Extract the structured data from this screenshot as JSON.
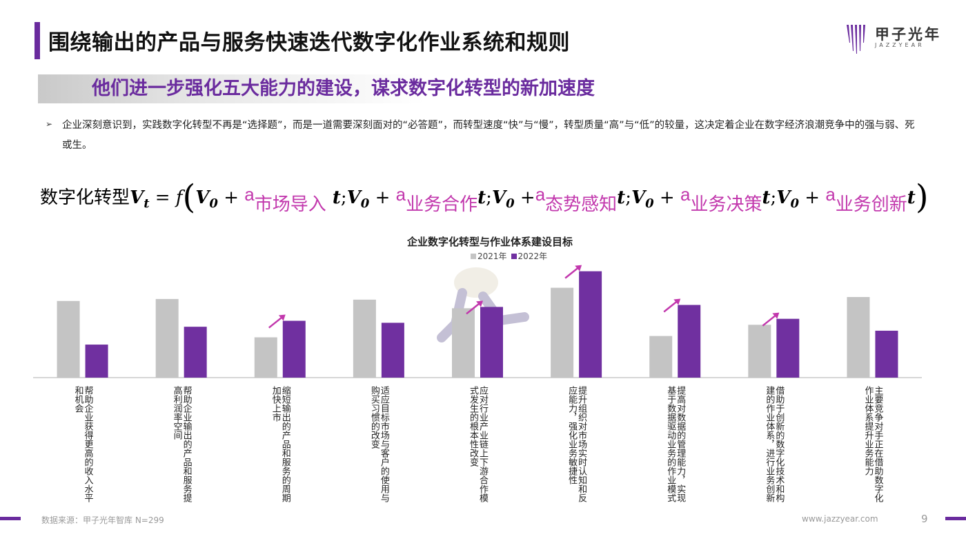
{
  "header": {
    "title": "围绕输出的产品与服务快速迭代数字化作业系统和规则",
    "logo_name": "甲子光年",
    "logo_sub": "JAZZYEAR"
  },
  "subtitle": "他们进一步强化五大能力的建设，谋求数字化转型的新加速度",
  "bullet": {
    "marker": "➢",
    "text": "企业深刻意识到，实践数字化转型不再是“选择题”，而是一道需要深刻面对的“必答题”，而转型速度“快”与“慢”，转型质量“高”与“低”的较量，这决定着企业在数字经济浪潮竞争中的强与弱、死或生。"
  },
  "formula": {
    "lead": "数字化转型",
    "v": "V",
    "sub_t": "t",
    "eq": " = ",
    "f": "f",
    "open": "(",
    "close": ")",
    "v0": "V",
    "sub0": "0",
    "plus": " + ",
    "a": "a",
    "t": "t",
    "sep": ";",
    "terms": [
      "市场导入",
      "业务合作",
      "态势感知",
      "业务决策",
      "业务创新"
    ]
  },
  "chart_data": {
    "type": "bar",
    "title": "企业数字化转型与作业体系建设目标",
    "legend": [
      "2021年",
      "2022年"
    ],
    "categories": [
      "帮助企业获得更高的收入水平和机会",
      "帮助企业输出的产品和服务提高利润率空间",
      "缩短输出的产品和服务的周期加快上市",
      "适应目标市场与客户的使用与购买习惯的改变",
      "应对行业产业链上下游合作模式发生的根本性改变",
      "提升组织对市场实时认知和反应能力，强化业务敏捷性",
      "提高对数据的管理能力，实现基于数据驱动业务的作业模式",
      "借助于创新的数字化技术和构建的作业体系，进行业务创新",
      "主要竞争对手正在借助数字化作业体系提升业务能力"
    ],
    "series": [
      {
        "name": "2021年",
        "color": "#c4c4c4",
        "values": [
          116,
          119,
          61,
          118,
          105,
          136,
          63,
          80,
          122
        ]
      },
      {
        "name": "2022年",
        "color": "#7030a0",
        "values": [
          50,
          77,
          86,
          83,
          107,
          161,
          110,
          89,
          71
        ]
      }
    ],
    "arrows_on": [
      2,
      4,
      5,
      6,
      7
    ],
    "grid": false,
    "ylim": [
      0,
      170
    ]
  },
  "footer": {
    "source": "数据来源：甲子光年智库 N=299",
    "website": "www.jazzyear.com",
    "page": "9"
  },
  "colors": {
    "brand": "#6a2b9e",
    "bar2021": "#c4c4c4",
    "bar2022": "#7030a0",
    "arrow": "#c238ad"
  }
}
